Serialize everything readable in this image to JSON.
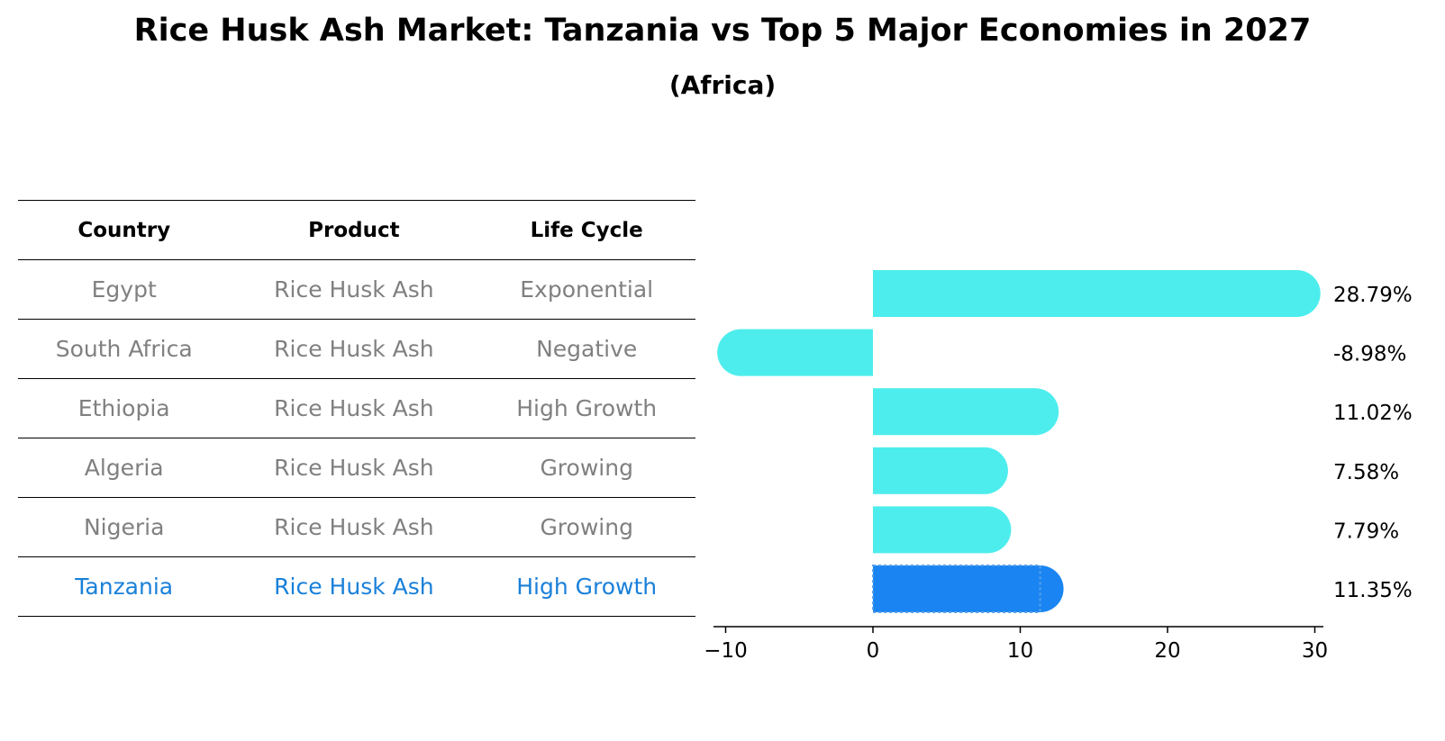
{
  "chart_data": {
    "type": "bar",
    "orientation": "horizontal",
    "title": "Rice Husk Ash Market: Tanzania vs Top 5 Major Economies in 2027",
    "subtitle": "(Africa)",
    "xlabel": "",
    "ylabel": "",
    "xlim": [
      -11,
      31
    ],
    "xticks": [
      -10,
      0,
      10,
      20,
      30
    ],
    "xtick_labels": [
      "−10",
      "0",
      "10",
      "20",
      "30"
    ],
    "categories": [
      "Egypt",
      "South Africa",
      "Ethiopia",
      "Algeria",
      "Nigeria",
      "Tanzania"
    ],
    "values": [
      28.79,
      -8.98,
      11.02,
      7.58,
      7.79,
      11.35
    ],
    "value_labels": [
      "28.79%",
      "-8.98%",
      "11.02%",
      "7.58%",
      "7.79%",
      "11.35%"
    ],
    "highlight": "Tanzania",
    "colors": {
      "default": "#4deded",
      "highlight": "#1a85f2"
    },
    "grid": false
  },
  "table": {
    "headers": [
      "Country",
      "Product",
      "Life Cycle"
    ],
    "rows": [
      [
        "Egypt",
        "Rice Husk Ash",
        "Exponential"
      ],
      [
        "South Africa",
        "Rice Husk Ash",
        "Negative"
      ],
      [
        "Ethiopia",
        "Rice Husk Ash",
        "High Growth"
      ],
      [
        "Algeria",
        "Rice Husk Ash",
        "Growing"
      ],
      [
        "Nigeria",
        "Rice Husk Ash",
        "Growing"
      ],
      [
        "Tanzania",
        "Rice Husk Ash",
        "High Growth"
      ]
    ],
    "highlight_color": "#1a80d9",
    "text_color": "#808080"
  }
}
